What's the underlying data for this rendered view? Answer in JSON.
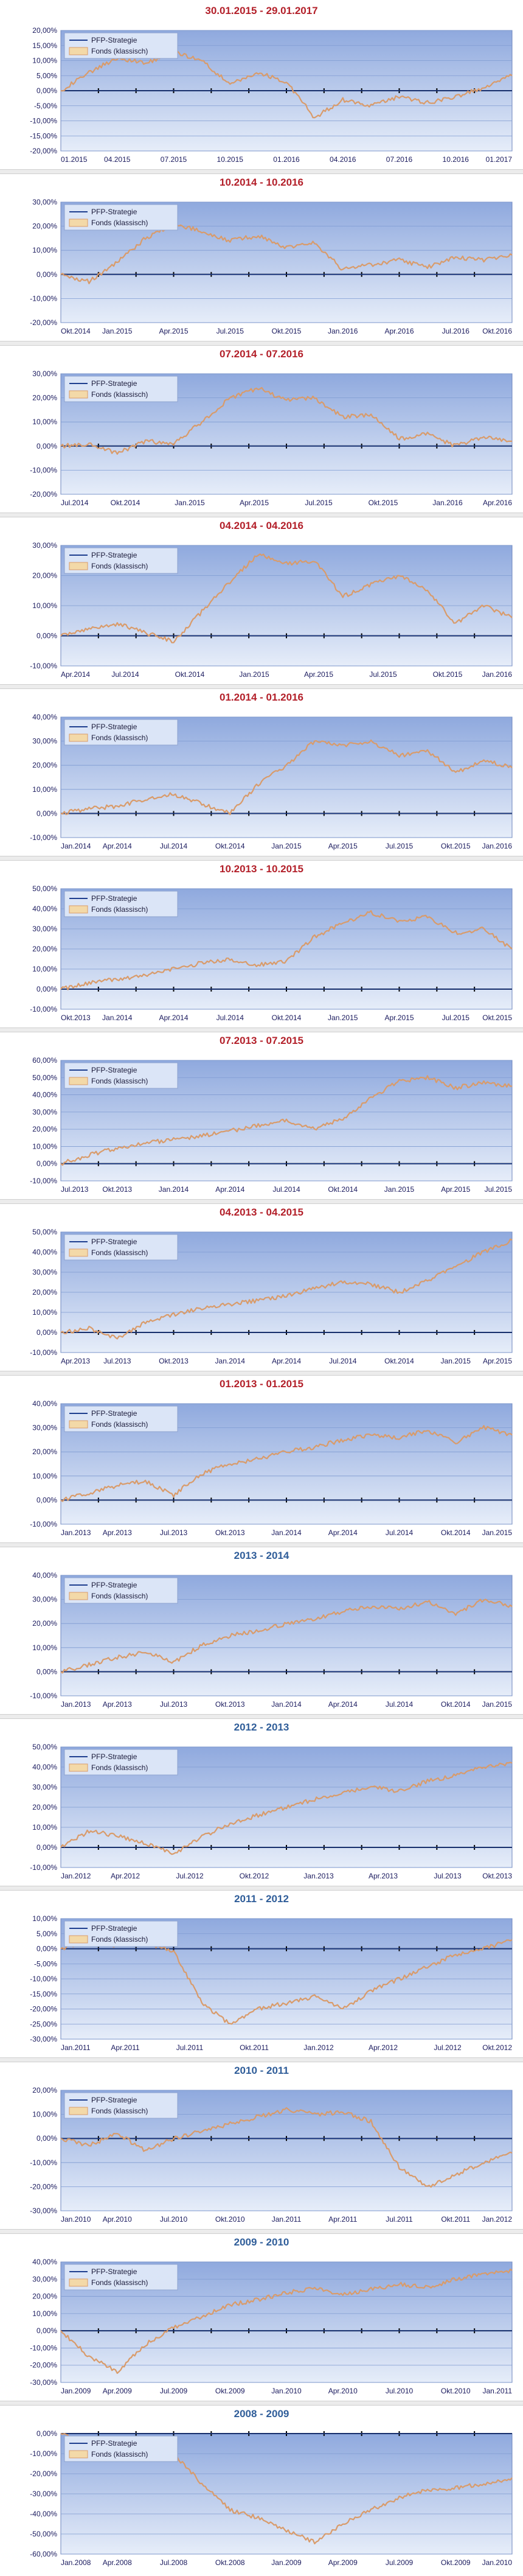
{
  "colors": {
    "title_red": "#b3202a",
    "title_blue": "#2f5d99",
    "plot_bg_top": "#8fa9de",
    "plot_bg_bottom": "#e6edf9",
    "grid": "#7f9bd1",
    "zero_line": "#000000",
    "strategy_line": "#1f3f8f",
    "fund_line": "#d99b6a",
    "axis_text": "#1a1a5e"
  },
  "legend": {
    "strategy": "PFP-Strategie",
    "fund": "Fonds (klassisch)"
  },
  "chart_data": [
    {
      "type": "line",
      "title": "30.01.2015 - 29.01.2017",
      "title_color": "red",
      "yticks": [
        "20,00%",
        "15,00%",
        "10,00%",
        "5,00%",
        "0,00%",
        "-5,00%",
        "-10,00%",
        "-15,00%",
        "-20,00%"
      ],
      "ylim": [
        -20,
        20
      ],
      "xticks": [
        "01.2015",
        "04.2015",
        "07.2015",
        "10.2015",
        "01.2016",
        "04.2016",
        "07.2016",
        "10.2016",
        "01.2017"
      ],
      "series": [
        {
          "name": "PFP-Strategie",
          "values": [
            0,
            0,
            0,
            0,
            0,
            0,
            0,
            0,
            0,
            0,
            0,
            0,
            0,
            0,
            0,
            0,
            0
          ]
        },
        {
          "name": "Fonds (klassisch)",
          "values": [
            0,
            6,
            11,
            9,
            13,
            10,
            2,
            6,
            3,
            -9,
            -3,
            -5,
            -2,
            -4,
            -2,
            1,
            5
          ]
        }
      ]
    },
    {
      "type": "line",
      "title": "10.2014 - 10.2016",
      "title_color": "red",
      "yticks": [
        "30,00%",
        "20,00%",
        "10,00%",
        "0,00%",
        "-10,00%",
        "-20,00%"
      ],
      "ylim": [
        -20,
        30
      ],
      "xticks": [
        "Okt.2014",
        "Jan.2015",
        "Apr.2015",
        "Jul.2015",
        "Okt.2015",
        "Jan.2016",
        "Apr.2016",
        "Jul.2016",
        "Okt.2016"
      ],
      "series": [
        {
          "name": "PFP-Strategie",
          "values": [
            0,
            0,
            0,
            0,
            0,
            0,
            0,
            0,
            0,
            0,
            0,
            0,
            0,
            0,
            0,
            0,
            0
          ]
        },
        {
          "name": "Fonds (klassisch)",
          "values": [
            0,
            -3,
            5,
            15,
            21,
            18,
            14,
            16,
            11,
            13,
            2,
            4,
            6,
            3,
            7,
            6,
            8
          ]
        }
      ]
    },
    {
      "type": "line",
      "title": "07.2014 - 07.2016",
      "title_color": "red",
      "yticks": [
        "30,00%",
        "20,00%",
        "10,00%",
        "0,00%",
        "-10,00%",
        "-20,00%"
      ],
      "ylim": [
        -20,
        30
      ],
      "xticks": [
        "Jul.2014",
        "Okt.2014",
        "Jan.2015",
        "Apr.2015",
        "Jul.2015",
        "Okt.2015",
        "Jan.2016",
        "Apr.2016"
      ],
      "series": [
        {
          "name": "PFP-Strategie",
          "values": [
            0,
            0,
            0,
            0,
            0,
            0,
            0,
            0,
            0,
            0,
            0,
            0,
            0,
            0,
            0,
            0,
            0
          ]
        },
        {
          "name": "Fonds (klassisch)",
          "values": [
            0,
            1,
            -3,
            2,
            1,
            10,
            20,
            24,
            19,
            20,
            12,
            13,
            3,
            5,
            0,
            4,
            2
          ]
        }
      ]
    },
    {
      "type": "line",
      "title": "04.2014 - 04.2016",
      "title_color": "red",
      "yticks": [
        "30,00%",
        "20,00%",
        "10,00%",
        "0,00%",
        "-10,00%"
      ],
      "ylim": [
        -10,
        30
      ],
      "xticks": [
        "Apr.2014",
        "Jul.2014",
        "Okt.2014",
        "Jan.2015",
        "Apr.2015",
        "Jul.2015",
        "Okt.2015",
        "Jan.2016"
      ],
      "series": [
        {
          "name": "PFP-Strategie",
          "values": [
            0,
            0,
            0,
            0,
            0,
            0,
            0,
            0,
            0,
            0,
            0,
            0,
            0,
            0,
            0,
            0,
            0
          ]
        },
        {
          "name": "Fonds (klassisch)",
          "values": [
            0,
            2,
            4,
            1,
            -2,
            8,
            18,
            27,
            24,
            25,
            13,
            17,
            20,
            15,
            4,
            10,
            6
          ]
        }
      ]
    },
    {
      "type": "line",
      "title": "01.2014 - 01.2016",
      "title_color": "red",
      "yticks": [
        "40,00%",
        "30,00%",
        "20,00%",
        "10,00%",
        "0,00%",
        "-10,00%"
      ],
      "ylim": [
        -10,
        40
      ],
      "xticks": [
        "Jan.2014",
        "Apr.2014",
        "Jul.2014",
        "Okt.2014",
        "Jan.2015",
        "Apr.2015",
        "Jul.2015",
        "Okt.2015",
        "Jan.2016"
      ],
      "series": [
        {
          "name": "PFP-Strategie",
          "values": [
            0,
            0,
            0,
            0,
            0,
            0,
            0,
            0,
            0,
            0,
            0,
            0,
            0,
            0,
            0,
            0,
            0
          ]
        },
        {
          "name": "Fonds (klassisch)",
          "values": [
            0,
            2,
            3,
            6,
            8,
            4,
            0,
            12,
            20,
            30,
            28,
            30,
            24,
            26,
            17,
            22,
            19
          ]
        }
      ]
    },
    {
      "type": "line",
      "title": "10.2013 - 10.2015",
      "title_color": "red",
      "yticks": [
        "50,00%",
        "40,00%",
        "30,00%",
        "20,00%",
        "10,00%",
        "0,00%",
        "-10,00%"
      ],
      "ylim": [
        -10,
        50
      ],
      "xticks": [
        "Okt.2013",
        "Jan.2014",
        "Apr.2014",
        "Jul.2014",
        "Okt.2014",
        "Jan.2015",
        "Apr.2015",
        "Jul.2015",
        "Okt.2015"
      ],
      "series": [
        {
          "name": "PFP-Strategie",
          "values": [
            0,
            0,
            0,
            0,
            0,
            0,
            0,
            0,
            0,
            0,
            0,
            0,
            0,
            0,
            0,
            0,
            0
          ]
        },
        {
          "name": "Fonds (klassisch)",
          "values": [
            0,
            3,
            5,
            7,
            10,
            13,
            15,
            12,
            14,
            26,
            33,
            38,
            34,
            36,
            28,
            30,
            20
          ]
        }
      ]
    },
    {
      "type": "line",
      "title": "07.2013 - 07.2015",
      "title_color": "red",
      "yticks": [
        "60,00%",
        "50,00%",
        "40,00%",
        "30,00%",
        "20,00%",
        "10,00%",
        "0,00%",
        "-10,00%"
      ],
      "ylim": [
        -10,
        60
      ],
      "xticks": [
        "Jul.2013",
        "Okt.2013",
        "Jan.2014",
        "Apr.2014",
        "Jul.2014",
        "Okt.2014",
        "Jan.2015",
        "Apr.2015",
        "Jul.2015"
      ],
      "series": [
        {
          "name": "PFP-Strategie",
          "values": [
            0,
            0,
            0,
            0,
            0,
            0,
            0,
            0,
            0,
            0,
            0,
            0,
            0,
            0,
            0,
            0,
            0
          ]
        },
        {
          "name": "Fonds (klassisch)",
          "values": [
            0,
            5,
            9,
            12,
            14,
            16,
            19,
            22,
            25,
            20,
            26,
            38,
            48,
            50,
            44,
            47,
            45
          ]
        }
      ]
    },
    {
      "type": "line",
      "title": "04.2013 - 04.2015",
      "title_color": "red",
      "yticks": [
        "50,00%",
        "40,00%",
        "30,00%",
        "20,00%",
        "10,00%",
        "0,00%",
        "-10,00%"
      ],
      "ylim": [
        -10,
        50
      ],
      "xticks": [
        "Apr.2013",
        "Jul.2013",
        "Okt.2013",
        "Jan.2014",
        "Apr.2014",
        "Jul.2014",
        "Okt.2014",
        "Jan.2015",
        "Apr.2015"
      ],
      "series": [
        {
          "name": "PFP-Strategie",
          "values": [
            0,
            0,
            0,
            0,
            0,
            0,
            0,
            0,
            0,
            0,
            0,
            0,
            0,
            0,
            0,
            0,
            0
          ]
        },
        {
          "name": "Fonds (klassisch)",
          "values": [
            0,
            2,
            -3,
            5,
            9,
            12,
            14,
            16,
            18,
            22,
            25,
            24,
            20,
            26,
            33,
            40,
            46
          ]
        }
      ]
    },
    {
      "type": "line",
      "title": "01.2013 - 01.2015",
      "title_color": "red",
      "yticks": [
        "40,00%",
        "30,00%",
        "20,00%",
        "10,00%",
        "0,00%",
        "-10,00%"
      ],
      "ylim": [
        -10,
        40
      ],
      "xticks": [
        "Jan.2013",
        "Apr.2013",
        "Jul.2013",
        "Okt.2013",
        "Jan.2014",
        "Apr.2014",
        "Jul.2014",
        "Okt.2014",
        "Jan.2015"
      ],
      "series": [
        {
          "name": "PFP-Strategie",
          "values": [
            0,
            0,
            0,
            0,
            0,
            0,
            0,
            0,
            0,
            0,
            0,
            0,
            0,
            0,
            0,
            0,
            0
          ]
        },
        {
          "name": "Fonds (klassisch)",
          "values": [
            0,
            3,
            6,
            8,
            2,
            11,
            15,
            17,
            20,
            22,
            25,
            27,
            26,
            29,
            24,
            30,
            27
          ]
        }
      ]
    },
    {
      "type": "line",
      "title": "2013 - 2014",
      "title_color": "blue",
      "yticks": [
        "40,00%",
        "30,00%",
        "20,00%",
        "10,00%",
        "0,00%",
        "-10,00%"
      ],
      "ylim": [
        -10,
        40
      ],
      "xticks": [
        "Jan.2013",
        "Apr.2013",
        "Jul.2013",
        "Okt.2013",
        "Jan.2014",
        "Apr.2014",
        "Jul.2014",
        "Okt.2014",
        "Jan.2015"
      ],
      "series": [
        {
          "name": "PFP-Strategie",
          "values": [
            0,
            0,
            0,
            0,
            0,
            0,
            0,
            0,
            0,
            0,
            0,
            0,
            0,
            0,
            0,
            0,
            0
          ]
        },
        {
          "name": "Fonds (klassisch)",
          "values": [
            0,
            3,
            6,
            8,
            4,
            11,
            15,
            17,
            20,
            22,
            25,
            27,
            26,
            29,
            24,
            30,
            27
          ]
        }
      ]
    },
    {
      "type": "line",
      "title": "2012 - 2013",
      "title_color": "blue",
      "yticks": [
        "50,00%",
        "40,00%",
        "30,00%",
        "20,00%",
        "10,00%",
        "0,00%",
        "-10,00%"
      ],
      "ylim": [
        -10,
        50
      ],
      "xticks": [
        "Jan.2012",
        "Apr.2012",
        "Jul.2012",
        "Okt.2012",
        "Jan.2013",
        "Apr.2013",
        "Jul.2013",
        "Okt.2013"
      ],
      "series": [
        {
          "name": "PFP-Strategie",
          "values": [
            0,
            0,
            0,
            0,
            0,
            0,
            0,
            0,
            0,
            0,
            0,
            0,
            0,
            0,
            0,
            0,
            0
          ]
        },
        {
          "name": "Fonds (klassisch)",
          "values": [
            0,
            8,
            6,
            2,
            -3,
            5,
            12,
            16,
            20,
            24,
            27,
            30,
            28,
            33,
            36,
            40,
            42
          ]
        }
      ]
    },
    {
      "type": "line",
      "title": "2011 - 2012",
      "title_color": "blue",
      "yticks": [
        "10,00%",
        "5,00%",
        "0,00%",
        "-5,00%",
        "-10,00%",
        "-15,00%",
        "-20,00%",
        "-25,00%",
        "-30,00%"
      ],
      "ylim": [
        -30,
        10
      ],
      "xticks": [
        "Jan.2011",
        "Apr.2011",
        "Jul.2011",
        "Okt.2011",
        "Jan.2012",
        "Apr.2012",
        "Jul.2012",
        "Okt.2012"
      ],
      "series": [
        {
          "name": "PFP-Strategie",
          "values": [
            0,
            0,
            0,
            0,
            0,
            0,
            0,
            0,
            0,
            0,
            0,
            0,
            0,
            0,
            0,
            0,
            0
          ]
        },
        {
          "name": "Fonds (klassisch)",
          "values": [
            0,
            3,
            1,
            2,
            -1,
            -18,
            -25,
            -20,
            -18,
            -16,
            -20,
            -14,
            -10,
            -6,
            -2,
            0,
            3
          ]
        }
      ]
    },
    {
      "type": "line",
      "title": "2010 - 2011",
      "title_color": "blue",
      "yticks": [
        "20,00%",
        "10,00%",
        "0,00%",
        "-10,00%",
        "-20,00%",
        "-30,00%"
      ],
      "ylim": [
        -30,
        20
      ],
      "xticks": [
        "Jan.2010",
        "Apr.2010",
        "Jul.2010",
        "Okt.2010",
        "Jan.2011",
        "Apr.2011",
        "Jul.2011",
        "Okt.2011",
        "Jan.2012"
      ],
      "series": [
        {
          "name": "PFP-Strategie",
          "values": [
            0,
            0,
            0,
            0,
            0,
            0,
            0,
            0,
            0,
            0,
            0,
            0,
            0,
            0,
            0,
            0,
            0
          ]
        },
        {
          "name": "Fonds (klassisch)",
          "values": [
            0,
            -3,
            2,
            -5,
            0,
            3,
            6,
            9,
            12,
            10,
            11,
            7,
            -12,
            -20,
            -15,
            -10,
            -6
          ]
        }
      ]
    },
    {
      "type": "line",
      "title": "2009 - 2010",
      "title_color": "blue",
      "yticks": [
        "40,00%",
        "30,00%",
        "20,00%",
        "10,00%",
        "0,00%",
        "-10,00%",
        "-20,00%",
        "-30,00%"
      ],
      "ylim": [
        -30,
        40
      ],
      "xticks": [
        "Jan.2009",
        "Apr.2009",
        "Jul.2009",
        "Okt.2009",
        "Jan.2010",
        "Apr.2010",
        "Jul.2010",
        "Okt.2010",
        "Jan.2011"
      ],
      "series": [
        {
          "name": "PFP-Strategie",
          "values": [
            0,
            0,
            0,
            0,
            0,
            0,
            0,
            0,
            0,
            0,
            0,
            0,
            0,
            0,
            0,
            0,
            0
          ]
        },
        {
          "name": "Fonds (klassisch)",
          "values": [
            0,
            -15,
            -24,
            -8,
            2,
            8,
            15,
            18,
            22,
            25,
            21,
            24,
            27,
            25,
            30,
            33,
            35
          ]
        }
      ]
    },
    {
      "type": "line",
      "title": "2008 - 2009",
      "title_color": "blue",
      "yticks": [
        "0,00%",
        "-10,00%",
        "-20,00%",
        "-30,00%",
        "-40,00%",
        "-50,00%",
        "-60,00%"
      ],
      "ylim": [
        -60,
        0
      ],
      "xticks": [
        "Jan.2008",
        "Apr.2008",
        "Jul.2008",
        "Okt.2008",
        "Jan.2009",
        "Apr.2009",
        "Jul.2009",
        "Okt.2009",
        "Jan.2010"
      ],
      "series": [
        {
          "name": "PFP-Strategie",
          "values": [
            0,
            0,
            0,
            0,
            0,
            0,
            0,
            0,
            0,
            0,
            0,
            0,
            0,
            0,
            0,
            0,
            0
          ]
        },
        {
          "name": "Fonds (klassisch)",
          "values": [
            0,
            -6,
            -8,
            -4,
            -10,
            -25,
            -38,
            -42,
            -48,
            -54,
            -45,
            -38,
            -32,
            -28,
            -27,
            -25,
            -22
          ]
        }
      ]
    }
  ]
}
